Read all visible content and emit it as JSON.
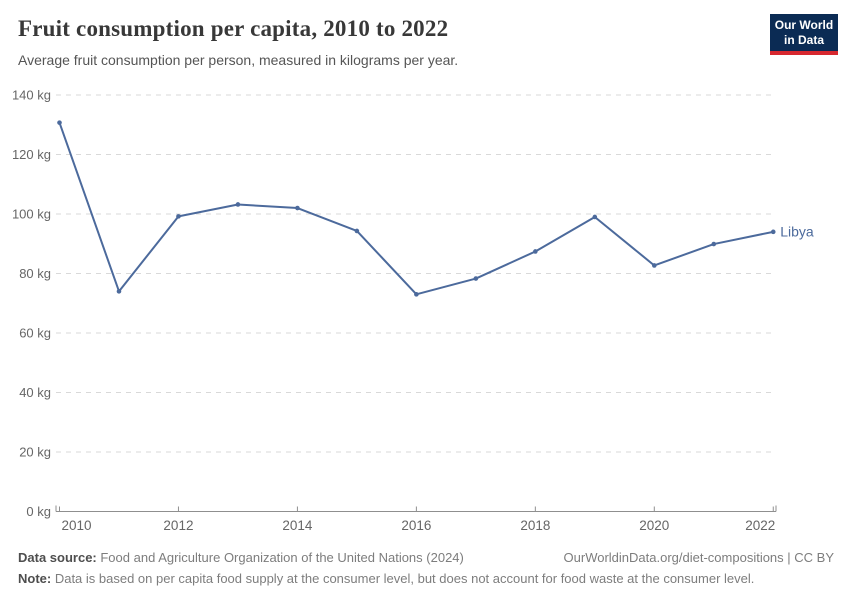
{
  "header": {
    "title": "Fruit consumption per capita, 2010 to 2022",
    "subtitle": "Average fruit consumption per person, measured in kilograms per year.",
    "logo": {
      "line1": "Our World",
      "line2": "in Data",
      "bg_color": "#0b2b54",
      "accent_color": "#d7282f"
    }
  },
  "chart_data": {
    "type": "line",
    "title": "Fruit consumption per capita, 2010 to 2022",
    "xlabel": "",
    "ylabel": "",
    "unit": "kg",
    "x": [
      2010,
      2011,
      2012,
      2013,
      2014,
      2015,
      2016,
      2017,
      2018,
      2019,
      2020,
      2021,
      2022
    ],
    "series": [
      {
        "name": "Libya",
        "color": "#4C6A9C",
        "values": [
          130.7,
          74.0,
          99.2,
          103.2,
          102.0,
          94.3,
          73.0,
          78.3,
          87.4,
          99.0,
          82.7,
          89.9,
          94.0
        ]
      }
    ],
    "ylim": [
      0,
      140
    ],
    "yticks": [
      0,
      20,
      40,
      60,
      80,
      100,
      120,
      140
    ],
    "ytick_suffix": " kg",
    "xticks": [
      2010,
      2012,
      2014,
      2016,
      2018,
      2020,
      2022
    ],
    "grid": "dashed-horizontal",
    "legend_position": "end-of-line-label"
  },
  "colors": {
    "line": "#4C6A9C",
    "grid": "#d9d9d9",
    "axis": "#8f8f8f",
    "tick_text": "#666666",
    "entity_label": "#4C6A9C"
  },
  "footer": {
    "data_source_label": "Data source:",
    "data_source_text": " Food and Agriculture Organization of the United Nations (2024)",
    "attribution": "OurWorldinData.org/diet-compositions | CC BY",
    "note_label": "Note:",
    "note_text": " Data is based on per capita food supply at the consumer level, but does not account for food waste at the consumer level."
  }
}
